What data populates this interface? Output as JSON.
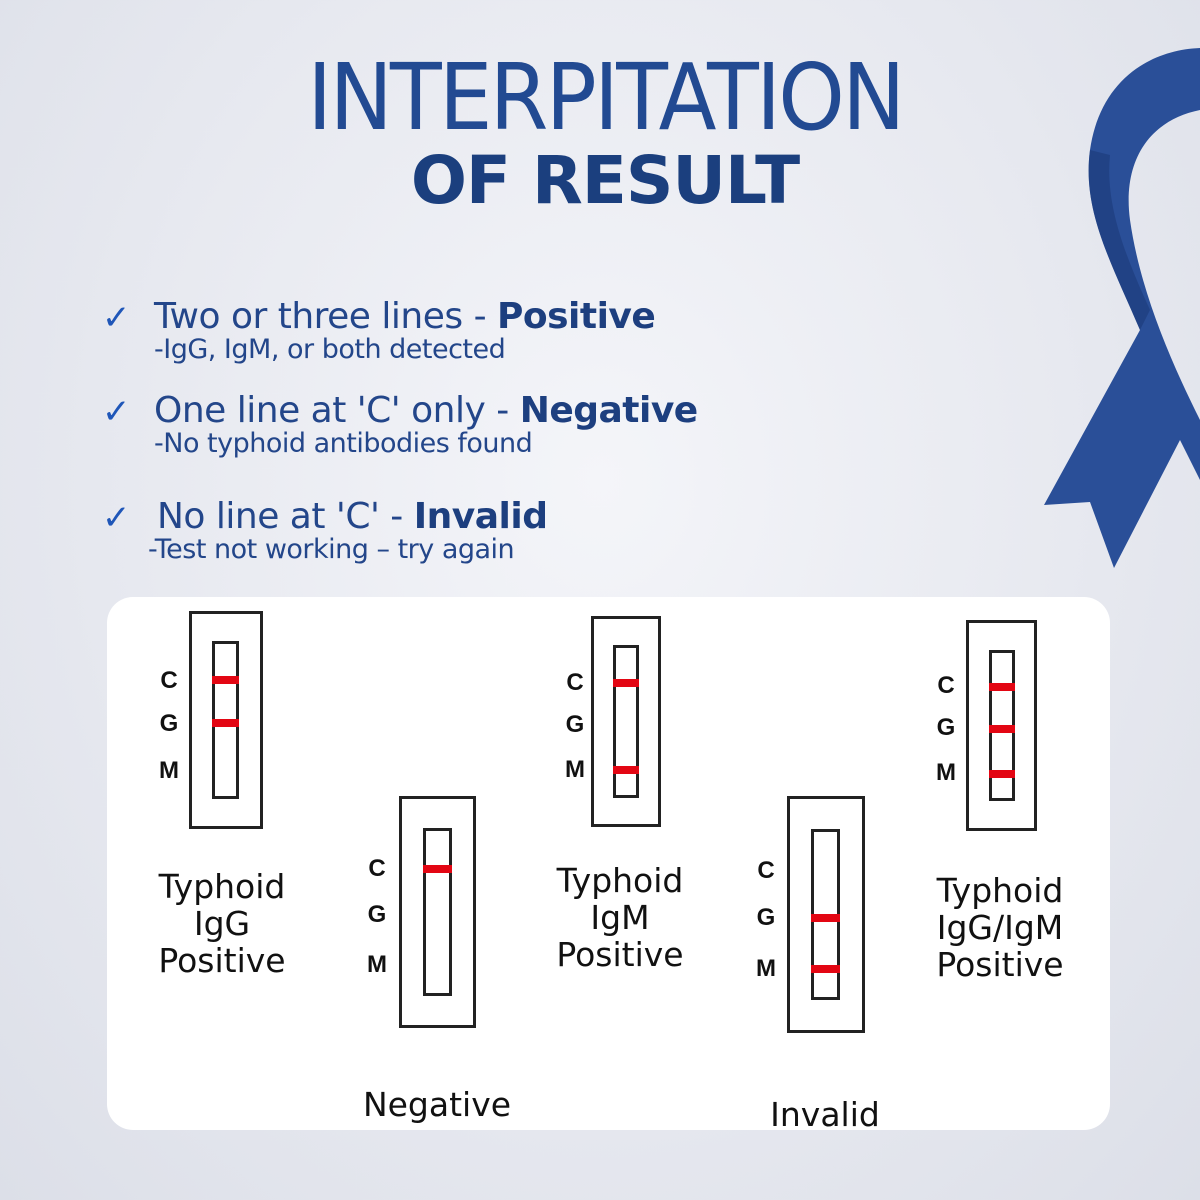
{
  "title": {
    "line1": "INTERPITATION",
    "line2": "OF RESULT"
  },
  "colors": {
    "primary": "#224a92",
    "check": "#1f56b8",
    "band": "#e30613",
    "ribbon": "#2a4f98"
  },
  "criteria": [
    {
      "icon": "check-icon",
      "main": "Two or three lines - ",
      "bold": "Positive",
      "sub": "-IgG, IgM, or both detected"
    },
    {
      "icon": "check-icon",
      "main": "One line at 'C' only - ",
      "bold": "Negative",
      "sub": "-No typhoid antibodies found"
    },
    {
      "icon": "check-icon",
      "main": "No line at 'C' - ",
      "bold": "Invalid",
      "sub": "-Test not working – try again"
    }
  ],
  "zone_labels": [
    "C",
    "G",
    "M"
  ],
  "cassettes": [
    {
      "caption": "Typhoid\nIgG\nPositive",
      "bands": [
        "C",
        "G"
      ]
    },
    {
      "caption": "Negative",
      "bands": [
        "C"
      ]
    },
    {
      "caption": "Typhoid\nIgM\nPositive",
      "bands": [
        "C",
        "M"
      ]
    },
    {
      "caption": "Invalid",
      "bands": [
        "G",
        "M"
      ]
    },
    {
      "caption": "Typhoid\nIgG/IgM\nPositive",
      "bands": [
        "C",
        "G",
        "M"
      ]
    }
  ]
}
